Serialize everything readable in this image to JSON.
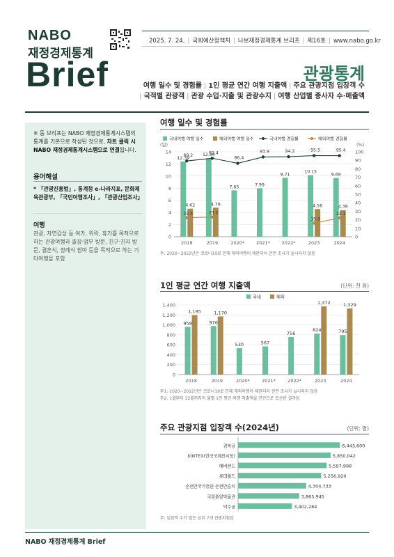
{
  "header": {
    "logo_nabo": "NABO",
    "logo_sub": "재정경제통계",
    "logo_brief": "Brief",
    "date": "2025. 7. 24.",
    "org": "국회예산정책처",
    "series": "나보재정경제통계 브리프",
    "issue": "제16호",
    "url": "www.nabo.go.kr",
    "title": "관광통계",
    "topics_line1": [
      "여행 일수 및 경험률",
      "1인 평균 연간 여행 지출액",
      "주요 관광지점 입장객 수"
    ],
    "topics_line2": [
      "국적별 관광객",
      "관광 수입·지출 및 관광수지",
      "여행 산업별 종사자 수·매출액"
    ]
  },
  "sidebar": {
    "note_prefix": "※ 동 브리프는 NABO 재정경제통계시스템의 통계를 기본으로 작성된 것으로, ",
    "note_bold": "차트 클릭 시 NABO 재정경제통계시스템으로 연결",
    "note_suffix": "됩니다.",
    "glossary_title": "용어해설",
    "glossary_text": "* 「관광진흥법」, 통계청 e-나라지표, 문화체육관광부, 「국민여행조사」, 「관광산업조사」",
    "trip_title": "여행",
    "trip_desc": "관광, 자연감상 등 여가, 위락, 휴가를 목적으로 하는 관광여행과 출장·업무 방문, 친구·친지 방문, 결혼식, 장례식 참여 등을 목적으로 하는 기타여행을 포함"
  },
  "chart1": {
    "title": "여행 일수 및 경험률",
    "legend": [
      "국내여행 여행 일수",
      "해외여행 여행 일수",
      "국내여행 경험률",
      "해외여행 경험률"
    ],
    "left_unit": "(일)",
    "right_unit": "(%)",
    "footnote": "주: 2020~2022년은 코로나19로 인해 해외여행이 제한되어 관련 조사가 실시되지 않음"
  },
  "chart2": {
    "title": "1인 평균 연간 여행 지출액",
    "unit": "(단위: 천 원)",
    "legend": [
      "국내",
      "해외"
    ],
    "footnote1": "주1: 2020~2022년은 코로나19로 인해 해외여행이 제한되어 관련 조사가 실시되지 않음",
    "footnote2": "주2: 1월부터 12월까지의 월별 1인 평균 여행 지출액을 연간으로 합산한 결과임"
  },
  "chart3": {
    "title": "주요 관광지점 입장객 수(2024년)",
    "unit": "(단위: 명)",
    "footnote": "주: 입장객 수가 많은 상위 7개 관광지점임"
  },
  "footer": {
    "text": "NABO 재정경제통계 Brief"
  },
  "colors": {
    "green": "#6bbf9f",
    "brown": "#a98a4f",
    "dark": "#1e3b33",
    "line_brown": "#b8864a"
  },
  "chart_data": [
    {
      "type": "bar",
      "title": "여행 일수 및 경험률",
      "categories": [
        "2018",
        "2019",
        "2020*",
        "2021*",
        "2022*",
        "2023",
        "2024"
      ],
      "ylim": [
        0,
        14
      ],
      "y2lim": [
        0,
        100
      ],
      "yticks": [
        0,
        2,
        4,
        6,
        8,
        10,
        12,
        14
      ],
      "y2ticks": [
        0,
        10,
        20,
        30,
        40,
        50,
        60,
        70,
        80,
        90,
        100
      ],
      "series": [
        {
          "name": "국내여행 여행 일수",
          "kind": "bar",
          "values": [
            12.39,
            12.94,
            7.65,
            7.99,
            9.71,
            10.15,
            9.69
          ]
        },
        {
          "name": "해외여행 여행 일수",
          "kind": "bar",
          "values": [
            4.62,
            4.79,
            null,
            null,
            null,
            4.56,
            4.39
          ]
        },
        {
          "name": "국내여행 경험률",
          "kind": "line",
          "axis": "right",
          "values": [
            89.2,
            92.4,
            86.4,
            93.9,
            94.2,
            95.5,
            95.4
          ]
        },
        {
          "name": "해외여행 경험률",
          "kind": "line",
          "axis": "right",
          "values": [
            22.4,
            23.2,
            null,
            null,
            null,
            15.9,
            22.1
          ]
        }
      ]
    },
    {
      "type": "bar",
      "title": "1인 평균 연간 여행 지출액",
      "categories": [
        "2018",
        "2019",
        "2020*",
        "2021*",
        "2022*",
        "2023",
        "2024"
      ],
      "ylim": [
        0,
        1400
      ],
      "yticks": [
        0,
        200,
        400,
        600,
        800,
        1000,
        1200,
        1400
      ],
      "ytick_labels": [
        "0",
        "200",
        "400",
        "600",
        "800",
        "1,000",
        "1,200",
        "1,400"
      ],
      "series": [
        {
          "name": "국내",
          "values": [
            959,
            976,
            530,
            567,
            756,
            824,
            795
          ],
          "labels": [
            "959",
            "976",
            "530",
            "567",
            "756",
            "824",
            "795"
          ]
        },
        {
          "name": "해외",
          "values": [
            1195,
            1170,
            null,
            null,
            null,
            1372,
            1329
          ],
          "labels": [
            "1,195",
            "1,170",
            "",
            "",
            "",
            "1,372",
            "1,329"
          ]
        }
      ]
    },
    {
      "type": "bar",
      "orientation": "horizontal",
      "title": "주요 관광지점 입장객 수(2024년)",
      "categories": [
        "경복궁",
        "KINTEX(한국국제전시장)",
        "에버랜드",
        "롯데월드",
        "순천만국가정원·순천만습지",
        "국립중앙박물관",
        "덕수궁"
      ],
      "values": [
        6443600,
        5850042,
        5597998,
        5256920,
        4304733,
        3865945,
        3402284
      ],
      "labels": [
        "6,443,600",
        "5,850,042",
        "5,597,998",
        "5,256,920",
        "4,304,733",
        "3,865,945",
        "3,402,284"
      ],
      "xlim": [
        0,
        7000000
      ]
    }
  ]
}
